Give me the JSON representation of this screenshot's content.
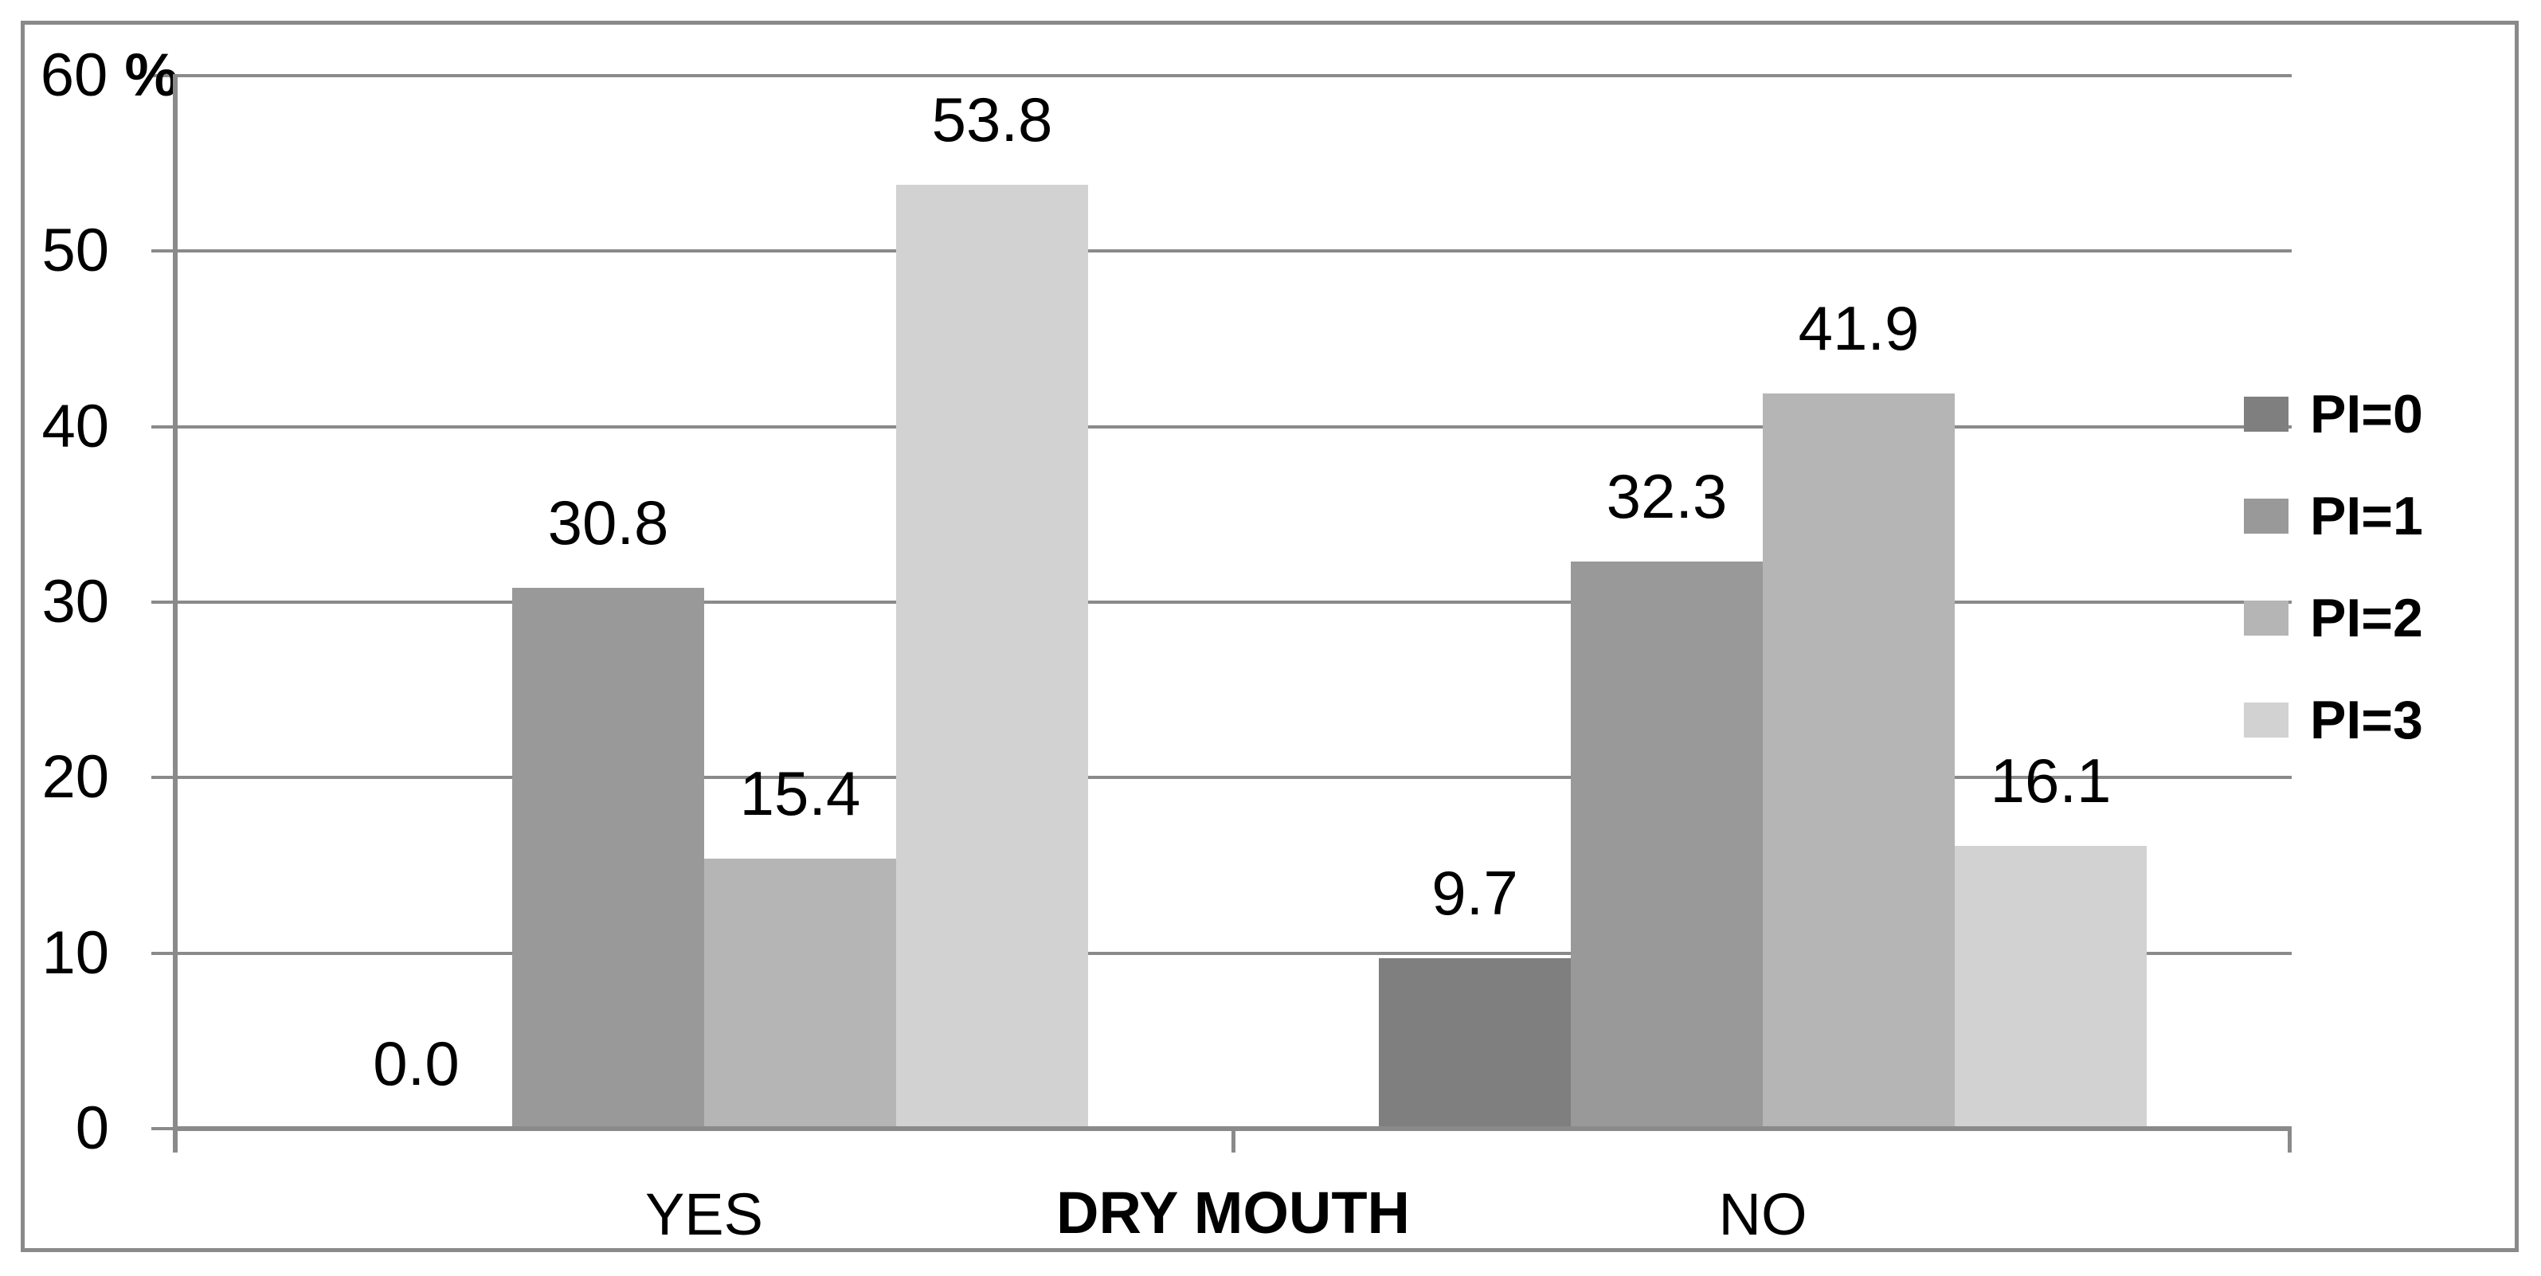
{
  "chart_data": {
    "type": "bar",
    "title": "",
    "categories": [
      "YES",
      "NO"
    ],
    "series": [
      {
        "name": "PI=0",
        "color": "#7f7f7f",
        "values": [
          0.0,
          9.7
        ]
      },
      {
        "name": "PI=1",
        "color": "#999999",
        "values": [
          30.8,
          32.3
        ]
      },
      {
        "name": "PI=2",
        "color": "#b5b5b5",
        "values": [
          15.4,
          41.9
        ]
      },
      {
        "name": "PI=3",
        "color": "#d2d2d2",
        "values": [
          53.8,
          16.1
        ]
      }
    ],
    "data_labels": {
      "YES": [
        "0.0",
        "30.8",
        "15.4",
        "53.8"
      ],
      "NO": [
        "9.7",
        "32.3",
        "41.9",
        "16.1"
      ]
    },
    "xlabel": "DRY MOUTH",
    "ylabel": "%",
    "ylim": [
      0,
      60
    ],
    "yticks": [
      0,
      10,
      20,
      30,
      40,
      50,
      60
    ],
    "grid": true,
    "legend_position": "right",
    "colors": {
      "chrome_gray": "#8a8a8a",
      "text": "#000000"
    }
  }
}
